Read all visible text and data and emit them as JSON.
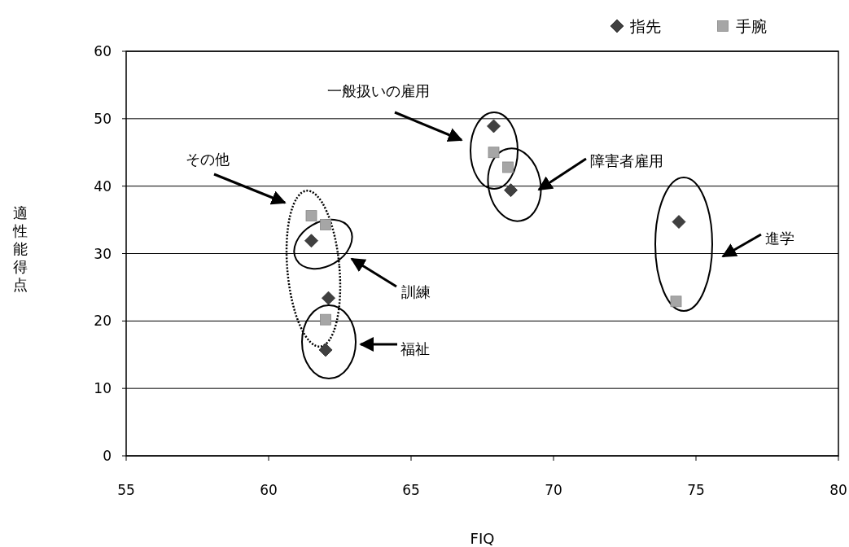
{
  "chart_data": {
    "type": "scatter",
    "xlabel": "FIQ",
    "ylabel": "適性能得点",
    "xlim": [
      55,
      80
    ],
    "xticks": [
      55,
      60,
      65,
      70,
      75,
      80
    ],
    "ylim": [
      0,
      60
    ],
    "yticks": [
      0,
      10,
      20,
      30,
      40,
      50,
      60
    ],
    "grid": "y",
    "legend": "top right",
    "series": [
      {
        "name": "指先",
        "color": "#404040",
        "marker": "diamond",
        "x": [
          74.4,
          67.9,
          68.5,
          61.5,
          62.1,
          62.0
        ],
        "values": [
          34.7,
          48.9,
          39.4,
          31.9,
          23.4,
          15.7
        ]
      },
      {
        "name": "手腕",
        "color": "#a6a6a6",
        "marker": "square",
        "x": [
          74.3,
          67.9,
          68.4,
          61.5,
          62.0,
          62.0
        ],
        "values": [
          22.9,
          45.0,
          42.8,
          35.6,
          34.3,
          20.2
        ]
      }
    ],
    "annotations": [
      "一般扱いの雇用",
      "障害者雇用",
      "その他",
      "訓練",
      "福祉",
      "進学"
    ]
  }
}
